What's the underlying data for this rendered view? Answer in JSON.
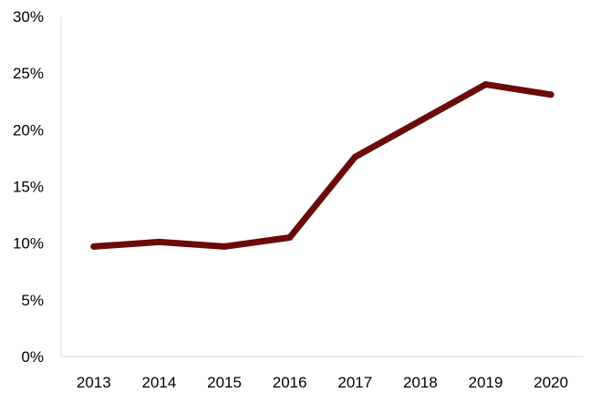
{
  "chart_data": {
    "type": "line",
    "title": "",
    "xlabel": "",
    "ylabel": "",
    "categories": [
      "2013",
      "2014",
      "2015",
      "2016",
      "2017",
      "2018",
      "2019",
      "2020"
    ],
    "series": [
      {
        "values": [
          9.7,
          10.1,
          9.7,
          10.5,
          17.6,
          20.8,
          24.0,
          23.1
        ]
      }
    ],
    "ylim": [
      0,
      30
    ],
    "y_ticks": [
      0,
      5,
      10,
      15,
      20,
      25,
      30
    ],
    "y_tick_labels": [
      "0%",
      "5%",
      "10%",
      "15%",
      "20%",
      "25%",
      "30%"
    ],
    "grid": false,
    "legend": "none",
    "colors": {
      "line": "#6b0a0a",
      "axis": "#d9d9d9"
    }
  }
}
